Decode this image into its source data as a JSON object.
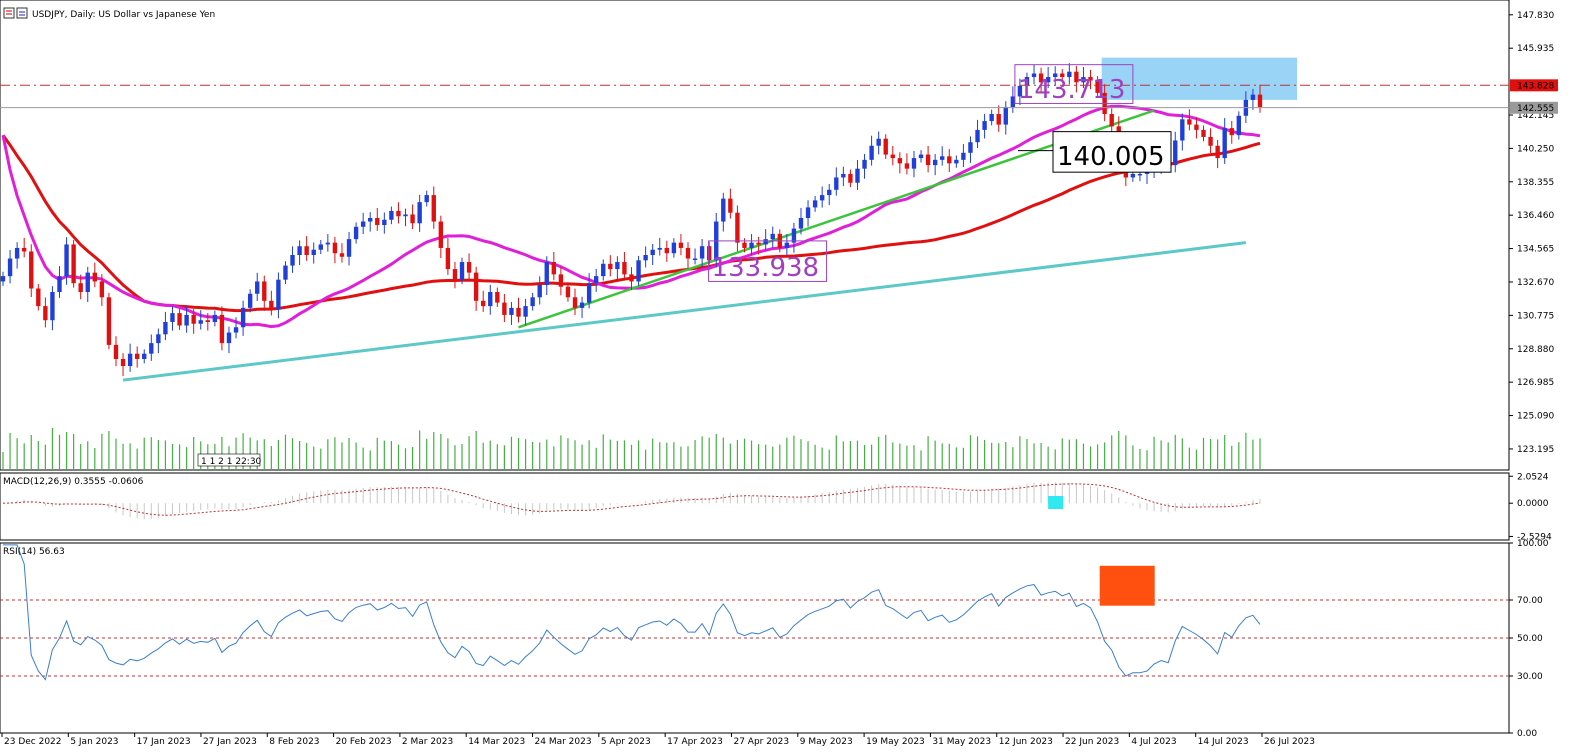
{
  "header": {
    "symbol_title": "USDJPY, Daily:  US Dollar vs Japanese Yen"
  },
  "colors": {
    "up_candle": "#1f3fd8",
    "down_candle": "#e01010",
    "ma_slow": "#e01010",
    "ma_fast": "#e020d8",
    "trend_green": "#3cc43c",
    "trend_cyan": "#5cc8c8",
    "zone_blue": "#8ecff5",
    "volume": "#44b044",
    "macd_hist": "#c8c8c8",
    "macd_signal": "#c03030",
    "rsi_line": "#3a7fd0",
    "rsi_levels": "#c03030",
    "annotation_purple": "#a040c0",
    "marker_cyan": "#30e8f0",
    "marker_orange": "#ff5010"
  },
  "chart_data": [
    {
      "type": "candlestick",
      "title": "USDJPY, Daily:  US Dollar vs Japanese Yen",
      "y_ticks": [
        "147.830",
        "145.935",
        "142.145",
        "140.250",
        "138.355",
        "136.460",
        "134.565",
        "132.670",
        "130.775",
        "128.880",
        "126.985",
        "125.090",
        "123.195"
      ],
      "ylim": [
        122.0,
        148.5
      ],
      "x_ticks": [
        "23 Dec 2022",
        "5 Jan 2023",
        "17 Jan 2023",
        "27 Jan 2023",
        "8 Feb 2023",
        "20 Feb 2023",
        "2 Mar 2023",
        "14 Mar 2023",
        "24 Mar 2023",
        "5 Apr 2023",
        "17 Apr 2023",
        "27 Apr 2023",
        "9 May 2023",
        "19 May 2023",
        "31 May 2023",
        "12 Jun 2023",
        "22 Jun 2023",
        "4 Jul 2023",
        "14 Jul 2023",
        "26 Jul 2023"
      ],
      "price_tags": {
        "high_line": "143.828",
        "current": "142.555"
      },
      "annotations": [
        "143.713",
        "140.005",
        "133.938"
      ],
      "time_label": "1 1 2 1 22:30",
      "closes": [
        133.0,
        134.0,
        134.6,
        134.4,
        132.3,
        131.3,
        130.5,
        132.1,
        133.0,
        134.8,
        132.6,
        132.1,
        133.2,
        132.7,
        131.8,
        129.1,
        128.3,
        127.9,
        128.6,
        128.3,
        128.6,
        129.2,
        129.7,
        130.4,
        130.9,
        130.2,
        130.8,
        130.3,
        130.5,
        130.4,
        130.8,
        129.2,
        129.8,
        130.1,
        131.2,
        132.0,
        132.7,
        131.6,
        131.1,
        132.8,
        133.6,
        134.2,
        134.7,
        134.2,
        134.5,
        134.8,
        134.9,
        134.3,
        134.1,
        135.1,
        135.8,
        136.1,
        136.3,
        135.9,
        136.2,
        136.7,
        136.4,
        136.5,
        136.0,
        137.2,
        137.6,
        136.1,
        134.6,
        133.4,
        132.8,
        133.8,
        133.2,
        131.6,
        131.3,
        132.1,
        131.5,
        130.8,
        131.2,
        130.7,
        131.3,
        131.8,
        132.5,
        133.8,
        133.1,
        132.4,
        131.8,
        131.2,
        131.5,
        132.6,
        133.0,
        133.7,
        133.4,
        133.8,
        133.1,
        132.7,
        133.9,
        134.2,
        134.5,
        134.6,
        134.3,
        134.9,
        134.6,
        134.0,
        134.0,
        134.7,
        133.9,
        136.1,
        137.4,
        136.6,
        134.9,
        134.6,
        134.9,
        134.8,
        135.1,
        135.4,
        134.6,
        134.9,
        135.7,
        136.3,
        136.9,
        137.3,
        137.6,
        137.9,
        138.6,
        138.8,
        138.3,
        139.1,
        139.6,
        140.4,
        140.8,
        139.9,
        139.7,
        139.4,
        139.1,
        139.7,
        139.9,
        139.3,
        139.6,
        139.8,
        139.4,
        139.6,
        140.0,
        140.6,
        141.3,
        141.8,
        142.2,
        141.6,
        142.6,
        143.2,
        143.8,
        144.3,
        144.5,
        144.0,
        144.3,
        144.5,
        144.3,
        144.6,
        144.0,
        144.3,
        144.1,
        143.4,
        142.2,
        141.5,
        139.8,
        138.6,
        138.8,
        138.8,
        138.9,
        139.3,
        139.5,
        139.3,
        140.7,
        141.9,
        141.6,
        141.3,
        140.9,
        140.4,
        139.7,
        141.4,
        141.0,
        142.1,
        143.0,
        143.3,
        142.6
      ]
    },
    {
      "type": "line",
      "title": "MACD(12,26,9) 0.3555 -0.0606",
      "y_ticks": [
        "2.0524",
        "0.0000",
        "-2.5294"
      ],
      "ylim": [
        -2.8,
        2.3
      ]
    },
    {
      "type": "line",
      "title": "RSI(14) 56.63",
      "y_ticks": [
        "100.00",
        "70.00",
        "50.00",
        "30.00",
        "0.00"
      ],
      "ylim": [
        0,
        100
      ],
      "levels": [
        70,
        50,
        30
      ]
    }
  ]
}
